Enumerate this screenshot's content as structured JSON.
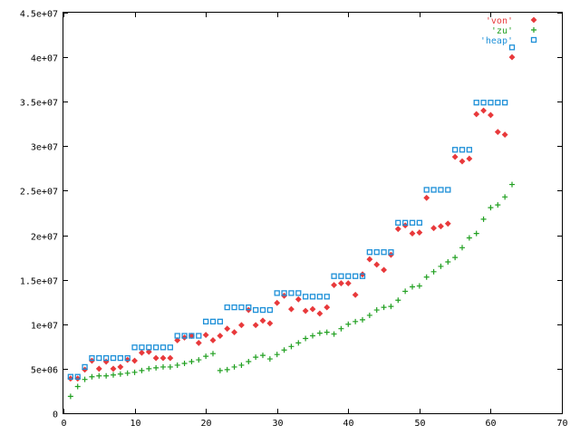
{
  "chart_data": {
    "type": "scatter",
    "title": "",
    "xlabel": "",
    "ylabel": "",
    "xlim": [
      0,
      70
    ],
    "ylim": [
      0,
      45000000
    ],
    "grid": false,
    "legend_position": "top-right",
    "x_ticks": [
      0,
      10,
      20,
      30,
      40,
      50,
      60,
      70
    ],
    "x_tick_labels": [
      "0",
      "10",
      "20",
      "30",
      "40",
      "50",
      "60",
      "70"
    ],
    "y_ticks": [
      0,
      5000000,
      10000000,
      15000000,
      20000000,
      25000000,
      30000000,
      35000000,
      40000000,
      45000000
    ],
    "y_tick_labels": [
      "0",
      "5e+06",
      "1e+07",
      "1.5e+07",
      "2e+07",
      "2.5e+07",
      "3e+07",
      "3.5e+07",
      "4e+07",
      "4.5e+07"
    ],
    "series": [
      {
        "name": "'von'",
        "color": "#e8393b",
        "marker": "diamond",
        "x": [
          1,
          2,
          3,
          4,
          5,
          6,
          7,
          8,
          9,
          10,
          11,
          12,
          13,
          14,
          15,
          16,
          17,
          18,
          19,
          20,
          21,
          22,
          23,
          24,
          25,
          26,
          27,
          28,
          29,
          30,
          31,
          32,
          33,
          34,
          35,
          36,
          37,
          38,
          39,
          40,
          41,
          42,
          43,
          44,
          45,
          46,
          47,
          48,
          49,
          50,
          51,
          52,
          53,
          54,
          55,
          56,
          57,
          58,
          59,
          60,
          61,
          62,
          63
        ],
        "y": [
          3900000,
          3900000,
          4900000,
          5900000,
          5000000,
          5800000,
          5000000,
          5200000,
          6000000,
          5900000,
          6800000,
          6900000,
          6200000,
          6200000,
          6200000,
          8200000,
          8500000,
          8700000,
          7900000,
          8800000,
          8200000,
          8700000,
          9500000,
          9100000,
          9900000,
          11600000,
          9900000,
          10400000,
          10100000,
          12400000,
          13200000,
          11700000,
          12800000,
          11500000,
          11700000,
          11200000,
          11900000,
          14400000,
          14600000,
          14600000,
          13300000,
          15600000,
          17300000,
          16700000,
          16100000,
          17800000,
          20700000,
          21100000,
          20200000,
          20300000,
          24200000,
          20800000,
          21000000,
          21300000,
          28800000,
          28300000,
          28600000,
          33600000,
          34000000,
          33500000,
          31600000,
          31300000,
          40000000
        ]
      },
      {
        "name": "'zu'",
        "color": "#21a021",
        "marker": "plus",
        "x": [
          1,
          2,
          3,
          4,
          5,
          6,
          7,
          8,
          9,
          10,
          11,
          12,
          13,
          14,
          15,
          16,
          17,
          18,
          19,
          20,
          21,
          22,
          23,
          24,
          25,
          26,
          27,
          28,
          29,
          30,
          31,
          32,
          33,
          34,
          35,
          36,
          37,
          38,
          39,
          40,
          41,
          42,
          43,
          44,
          45,
          46,
          47,
          48,
          49,
          50,
          51,
          52,
          53,
          54,
          55,
          56,
          57,
          58,
          59,
          60,
          61,
          62,
          63
        ],
        "y": [
          1900000,
          3000000,
          3800000,
          4100000,
          4200000,
          4200000,
          4300000,
          4400000,
          4500000,
          4600000,
          4800000,
          5000000,
          5100000,
          5200000,
          5200000,
          5400000,
          5600000,
          5800000,
          6000000,
          6400000,
          6700000,
          4800000,
          4900000,
          5200000,
          5400000,
          5800000,
          6300000,
          6500000,
          6100000,
          6600000,
          7100000,
          7500000,
          7900000,
          8400000,
          8700000,
          9000000,
          9100000,
          8900000,
          9500000,
          10000000,
          10300000,
          10500000,
          11000000,
          11600000,
          11900000,
          12000000,
          12700000,
          13700000,
          14200000,
          14300000,
          15300000,
          15900000,
          16500000,
          17000000,
          17500000,
          18600000,
          19700000,
          20200000,
          21800000,
          23100000,
          23400000,
          24300000,
          25700000
        ]
      },
      {
        "name": "'heap'",
        "color": "#1e90d8",
        "marker": "square",
        "x": [
          1,
          2,
          3,
          4,
          5,
          6,
          7,
          8,
          9,
          10,
          11,
          12,
          13,
          14,
          15,
          16,
          17,
          18,
          19,
          20,
          21,
          22,
          23,
          24,
          25,
          26,
          27,
          28,
          29,
          30,
          31,
          32,
          33,
          34,
          35,
          36,
          37,
          38,
          39,
          40,
          41,
          42,
          43,
          44,
          45,
          46,
          47,
          48,
          49,
          50,
          51,
          52,
          53,
          54,
          55,
          56,
          57,
          58,
          59,
          60,
          61,
          62,
          63
        ],
        "y": [
          4100000,
          4100000,
          5200000,
          6200000,
          6200000,
          6200000,
          6200000,
          6200000,
          6200000,
          7400000,
          7400000,
          7400000,
          7400000,
          7400000,
          7400000,
          8700000,
          8700000,
          8700000,
          8700000,
          10300000,
          10300000,
          10300000,
          11900000,
          11900000,
          11900000,
          11900000,
          11600000,
          11600000,
          11600000,
          13500000,
          13500000,
          13500000,
          13500000,
          13100000,
          13100000,
          13100000,
          13100000,
          15400000,
          15400000,
          15400000,
          15400000,
          15400000,
          18100000,
          18100000,
          18100000,
          18100000,
          21400000,
          21400000,
          21400000,
          21400000,
          25100000,
          25100000,
          25100000,
          25100000,
          29600000,
          29600000,
          29600000,
          34900000,
          34900000,
          34900000,
          34900000,
          34900000,
          41100000
        ]
      }
    ]
  }
}
